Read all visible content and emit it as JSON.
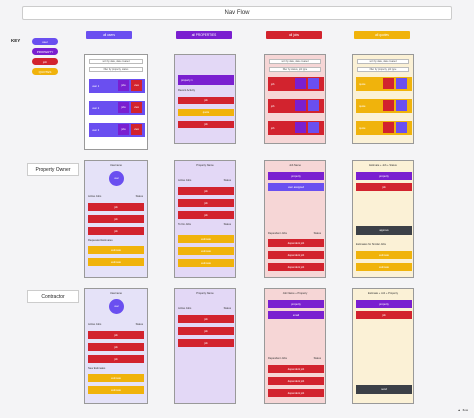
{
  "title": "Nav Flow",
  "colors": {
    "purple": "#6a4ff0",
    "violet": "#7a1fd0",
    "red": "#d2232e",
    "yellow": "#f0b30c",
    "lavender": "#e3d8f6",
    "pink": "#f6d6d6",
    "cream": "#fbf1d6",
    "dark": "#3c4047"
  },
  "key": {
    "label": "KEY",
    "items": [
      "user",
      "PROPERTY",
      "job",
      "QUOTES"
    ]
  },
  "columns": [
    {
      "header": "all users"
    },
    {
      "header": "all PROPERTIES"
    },
    {
      "header": "all jobs"
    },
    {
      "header": "all quotes"
    }
  ],
  "top": {
    "search": [
      "sort by date, date created",
      "filter by property, status"
    ],
    "users": [
      "user 1",
      "user 2",
      "user 3"
    ],
    "user_actions": [
      "jobs",
      "view"
    ],
    "property_label": "property 1",
    "recent_activity": "Recent Activity",
    "job_label": "job",
    "quote_label": "quote",
    "jobs_search": [
      "sort by date, date created",
      "filter by status, job type"
    ],
    "quotes_search": [
      "sort by date, date created",
      "filter by property, job type"
    ],
    "quotes_items": [
      "quote",
      "quote",
      "quote"
    ]
  },
  "rows": [
    {
      "label": "Property Owner"
    },
    {
      "label": "Contractor"
    }
  ],
  "po": {
    "user_title": "Username",
    "avatar": "user",
    "active_jobs": "Active Jobs",
    "status": "Status",
    "job": "job",
    "requested_estimates": "Requested Estimates",
    "estimate": "estimate",
    "prop_title": "Property Name",
    "to_do_jobs": "To Do Jobs",
    "job_title": "Job Name",
    "job_property": "property",
    "job_user_assigned": "user assigned",
    "dependent_jobs": "Dependent Jobs",
    "dependent_job": "dependent job",
    "quote_title": "Estimate + Job + Status",
    "quote_property": "property",
    "quote_job": "job",
    "approve": "approve",
    "estimates_for_similar": "Estimates for Similar Jobs"
  },
  "ct": {
    "user_title": "Username",
    "avatar": "user",
    "active_jobs": "Active Jobs",
    "status": "Status",
    "job": "job",
    "new_estimates": "New Estimates",
    "estimate": "estimate",
    "prop_title": "Property Name",
    "job_title": "Job Name + Property",
    "job_property": "property",
    "job_email": "email",
    "dependent_jobs": "Dependent Jobs",
    "dependent_job": "dependent job",
    "quote_title": "Estimate + Job + Property",
    "quote_property": "property",
    "quote_job": "job",
    "send": "send"
  },
  "logo": "flow"
}
